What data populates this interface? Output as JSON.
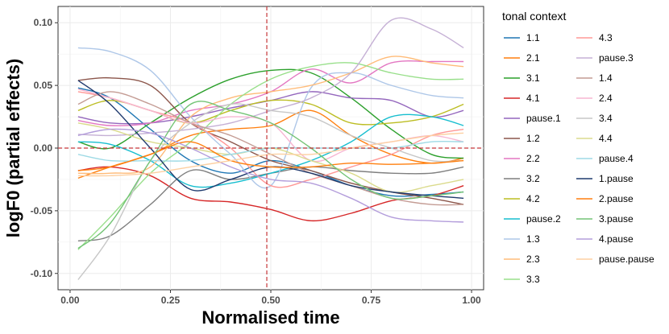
{
  "chart_data": {
    "type": "line",
    "xlabel": "Normalised time",
    "ylabel": "logF0 (partial effects)",
    "xlim": [
      -0.03,
      1.03
    ],
    "ylim": [
      -0.113,
      0.113
    ],
    "x_ticks": [
      0.0,
      0.25,
      0.5,
      0.75,
      1.0
    ],
    "x_tick_labels": [
      "0.00",
      "0.25",
      "0.50",
      "0.75",
      "1.00"
    ],
    "y_ticks": [
      -0.1,
      -0.05,
      0.0,
      0.05,
      0.1
    ],
    "y_tick_labels": [
      "-0.10",
      "-0.05",
      "0.00",
      "0.05",
      "0.10"
    ],
    "reference_lines": [
      {
        "axis": "x",
        "value": 0.49,
        "style": "dashed",
        "color": "#c7383b"
      },
      {
        "axis": "y",
        "value": 0.0,
        "style": "dashed",
        "color": "#c7383b"
      }
    ],
    "grid": true,
    "legend": {
      "title": "tonal context",
      "position": "right",
      "columns": 2
    },
    "x": [
      0.02,
      0.1,
      0.2,
      0.3,
      0.4,
      0.5,
      0.6,
      0.7,
      0.8,
      0.9,
      0.98
    ],
    "series": [
      {
        "name": "1.1",
        "color": "#1f77b4",
        "values": [
          0.048,
          0.04,
          0.015,
          -0.01,
          -0.02,
          -0.01,
          -0.018,
          -0.03,
          -0.038,
          -0.037,
          -0.035
        ]
      },
      {
        "name": "2.1",
        "color": "#ff7f0e",
        "values": [
          -0.024,
          -0.015,
          -0.005,
          0.01,
          0.015,
          0.018,
          0.03,
          0.01,
          -0.005,
          -0.012,
          -0.008
        ]
      },
      {
        "name": "3.1",
        "color": "#2ca02c",
        "values": [
          0.005,
          0.0,
          0.02,
          0.04,
          0.055,
          0.062,
          0.06,
          0.04,
          0.015,
          -0.005,
          -0.008
        ]
      },
      {
        "name": "4.1",
        "color": "#d62728",
        "values": [
          -0.018,
          -0.015,
          -0.022,
          -0.04,
          -0.043,
          -0.049,
          -0.058,
          -0.052,
          -0.042,
          -0.038,
          -0.03
        ]
      },
      {
        "name": "pause.1",
        "color": "#9467bd",
        "values": [
          0.025,
          0.02,
          0.02,
          0.025,
          0.032,
          0.038,
          0.045,
          0.04,
          0.038,
          0.025,
          0.03
        ]
      },
      {
        "name": "1.2",
        "color": "#8c564b",
        "values": [
          0.054,
          0.056,
          0.05,
          0.02,
          0.005,
          -0.01,
          -0.018,
          -0.028,
          -0.035,
          -0.04,
          -0.045
        ]
      },
      {
        "name": "2.2",
        "color": "#e377c2",
        "values": [
          0.022,
          0.018,
          0.02,
          0.03,
          0.035,
          0.045,
          0.063,
          0.052,
          0.068,
          0.069,
          0.069
        ]
      },
      {
        "name": "3.2",
        "color": "#7f7f7f",
        "values": [
          -0.074,
          -0.07,
          -0.045,
          -0.018,
          -0.025,
          -0.02,
          -0.015,
          -0.018,
          -0.02,
          -0.02,
          -0.015
        ]
      },
      {
        "name": "4.2",
        "color": "#bcbd22",
        "values": [
          0.03,
          0.038,
          0.03,
          0.02,
          0.03,
          0.038,
          0.035,
          0.02,
          0.02,
          0.025,
          0.035
        ]
      },
      {
        "name": "pause.2",
        "color": "#17becf",
        "values": [
          0.005,
          0.003,
          -0.01,
          -0.03,
          -0.028,
          -0.02,
          -0.01,
          0.005,
          0.025,
          0.025,
          0.018
        ]
      },
      {
        "name": "1.3",
        "color": "#aec7e8",
        "values": [
          0.08,
          0.077,
          0.062,
          0.025,
          -0.005,
          -0.03,
          0.048,
          0.06,
          0.05,
          0.042,
          0.04
        ]
      },
      {
        "name": "2.3",
        "color": "#ffbb78",
        "values": [
          -0.02,
          -0.02,
          -0.015,
          0.025,
          0.04,
          0.045,
          0.05,
          0.06,
          0.073,
          0.068,
          0.065
        ]
      },
      {
        "name": "3.3",
        "color": "#98df8a",
        "values": [
          -0.081,
          -0.055,
          -0.02,
          0.005,
          0.035,
          0.055,
          0.065,
          0.068,
          0.06,
          0.055,
          0.055
        ]
      },
      {
        "name": "4.3",
        "color": "#ff9896",
        "values": [
          0.045,
          0.04,
          0.03,
          0.02,
          0.0,
          -0.03,
          -0.025,
          -0.015,
          -0.005,
          0.01,
          0.015
        ]
      },
      {
        "name": "pause.3",
        "color": "#c5b0d5",
        "values": [
          0.011,
          0.01,
          0.012,
          0.015,
          0.02,
          0.03,
          0.04,
          0.06,
          0.102,
          0.095,
          0.08
        ]
      },
      {
        "name": "1.4",
        "color": "#c49c94",
        "values": [
          0.035,
          0.045,
          0.035,
          0.02,
          0.01,
          -0.005,
          -0.02,
          -0.03,
          -0.04,
          -0.045,
          -0.045
        ]
      },
      {
        "name": "2.4",
        "color": "#f7b6d2",
        "values": [
          0.047,
          0.04,
          0.03,
          0.02,
          0.025,
          0.02,
          -0.01,
          0.0,
          0.005,
          0.01,
          0.005
        ]
      },
      {
        "name": "3.4",
        "color": "#c7c7c7",
        "values": [
          -0.105,
          -0.07,
          -0.01,
          0.02,
          0.035,
          0.03,
          0.025,
          0.01,
          0.0,
          -0.01,
          -0.01
        ]
      },
      {
        "name": "4.4",
        "color": "#dbdb8d",
        "values": [
          0.02,
          0.015,
          0.005,
          0.0,
          -0.005,
          0.0,
          -0.01,
          -0.02,
          -0.035,
          -0.03,
          -0.025
        ]
      },
      {
        "name": "pause.4",
        "color": "#9edae5",
        "values": [
          -0.005,
          -0.01,
          -0.01,
          -0.01,
          -0.005,
          0.0,
          0.0,
          0.0,
          0.0,
          0.005,
          0.005
        ]
      },
      {
        "name": "1.pause",
        "color": "#1f3a6e",
        "values": [
          0.054,
          0.035,
          0.0,
          -0.033,
          -0.025,
          -0.015,
          -0.02,
          -0.03,
          -0.035,
          -0.038,
          -0.04
        ]
      },
      {
        "name": "2.pause",
        "color": "#ff7f0e",
        "values": [
          -0.018,
          -0.015,
          -0.005,
          0.005,
          -0.01,
          -0.015,
          -0.015,
          -0.012,
          -0.013,
          -0.012,
          -0.01
        ]
      },
      {
        "name": "3.pause",
        "color": "#74c476",
        "values": [
          -0.08,
          -0.06,
          -0.01,
          0.035,
          0.03,
          0.02,
          0.0,
          -0.025,
          -0.04,
          -0.038,
          -0.035
        ]
      },
      {
        "name": "4.pause",
        "color": "#b39ddb",
        "values": [
          0.01,
          0.015,
          0.012,
          0.0,
          -0.015,
          -0.025,
          -0.028,
          -0.04,
          -0.055,
          -0.058,
          -0.059
        ]
      },
      {
        "name": "pause.pause",
        "color": "#fdd0a2",
        "values": [
          -0.022,
          -0.022,
          -0.02,
          -0.015,
          -0.01,
          -0.005,
          -0.005,
          0.0,
          0.005,
          0.01,
          0.012
        ]
      }
    ]
  }
}
